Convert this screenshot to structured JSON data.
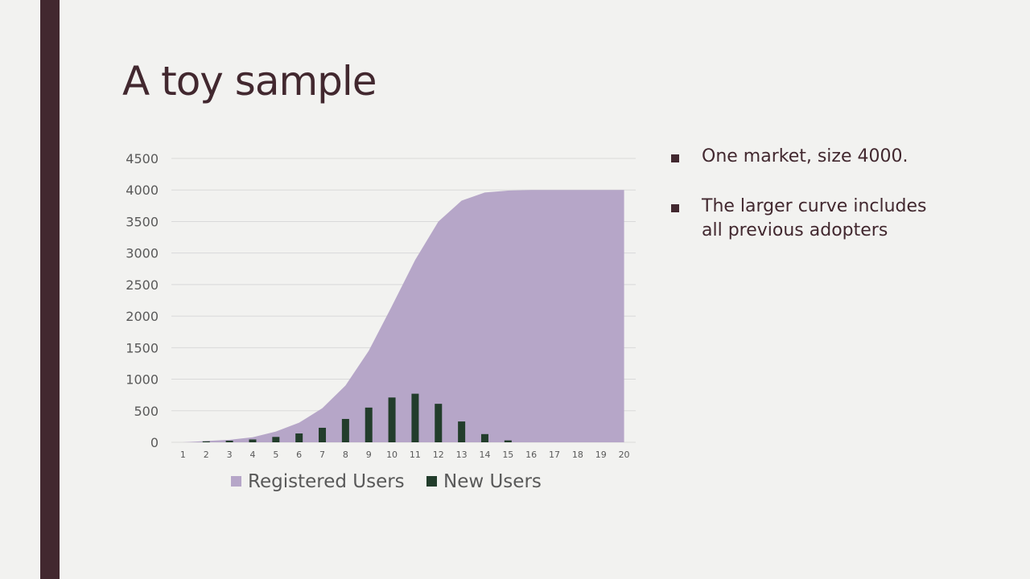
{
  "slide": {
    "title": "A toy sample",
    "bullets": [
      "One market, size 4000.",
      "The larger curve includes all previous adopters"
    ]
  },
  "colors": {
    "sidebar": "#42282f",
    "registered": "#b6a6c8",
    "new_users": "#223d2b",
    "text": "#42282f"
  },
  "chart_data": {
    "type": "area",
    "categories": [
      "1",
      "2",
      "3",
      "4",
      "5",
      "6",
      "7",
      "8",
      "9",
      "10",
      "11",
      "12",
      "13",
      "14",
      "15",
      "16",
      "17",
      "18",
      "19",
      "20"
    ],
    "ylim": [
      0,
      4500
    ],
    "yticks": [
      0,
      500,
      1000,
      1500,
      2000,
      2500,
      3000,
      3500,
      4000,
      4500
    ],
    "grid": true,
    "legend_position": "bottom",
    "series": [
      {
        "name": "Registered Users",
        "type": "area",
        "color": "#b6a6c8",
        "values": [
          0,
          20,
          40,
          80,
          170,
          310,
          540,
          900,
          1450,
          2160,
          2890,
          3500,
          3830,
          3960,
          3990,
          4000,
          4000,
          4000,
          4000,
          4000
        ]
      },
      {
        "name": "New Users",
        "type": "bar",
        "color": "#223d2b",
        "values": [
          0,
          15,
          25,
          45,
          85,
          140,
          230,
          370,
          550,
          710,
          770,
          610,
          330,
          130,
          30,
          0,
          0,
          0,
          0,
          0
        ]
      }
    ]
  }
}
